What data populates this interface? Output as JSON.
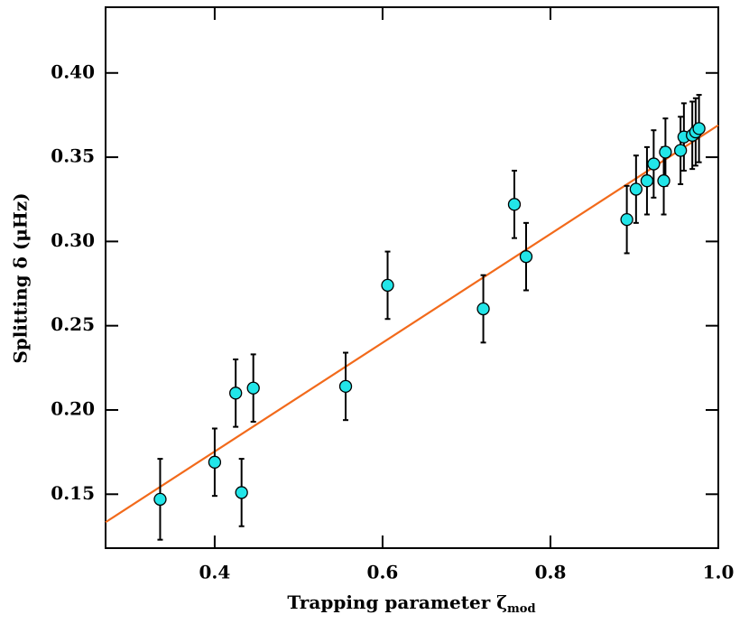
{
  "chart_data": {
    "type": "scatter",
    "xlabel": "Trapping parameter ζ",
    "xlabel_sub": "mod",
    "ylabel": "Splitting δ (μHz)",
    "xlim": [
      0.27,
      1.0
    ],
    "ylim": [
      0.118,
      0.439
    ],
    "xticks": [
      0.4,
      0.6,
      0.8,
      {
        "value": 1.0,
        "label": "1.0"
      }
    ],
    "yticks": [
      0.15,
      {
        "value": 0.2,
        "label": "0.20"
      },
      0.25,
      {
        "value": 0.3,
        "label": "0.30"
      },
      0.35,
      {
        "value": 0.4,
        "label": "0.40"
      }
    ],
    "series": [
      {
        "color": "#22e5e8",
        "x": [
          0.335,
          0.4,
          0.425,
          0.432,
          0.446,
          0.556,
          0.606,
          0.72,
          0.757,
          0.771,
          0.891,
          0.902,
          0.915,
          0.923,
          0.937,
          0.935,
          0.955,
          0.959,
          0.969,
          0.973,
          0.977
        ],
        "y": [
          0.147,
          0.169,
          0.21,
          0.151,
          0.213,
          0.214,
          0.274,
          0.26,
          0.322,
          0.291,
          0.313,
          0.331,
          0.336,
          0.346,
          0.353,
          0.336,
          0.354,
          0.362,
          0.363,
          0.365,
          0.367
        ],
        "err": [
          0.024,
          0.02,
          0.02,
          0.02,
          0.02,
          0.02,
          0.02,
          0.02,
          0.02,
          0.02,
          0.02,
          0.02,
          0.02,
          0.02,
          0.02,
          0.02,
          0.02,
          0.02,
          0.02,
          0.02,
          0.02
        ]
      }
    ],
    "fit": {
      "color": "#f26a1b",
      "x": [
        0.27,
        1.0
      ],
      "y": [
        0.1334,
        0.369
      ]
    }
  }
}
